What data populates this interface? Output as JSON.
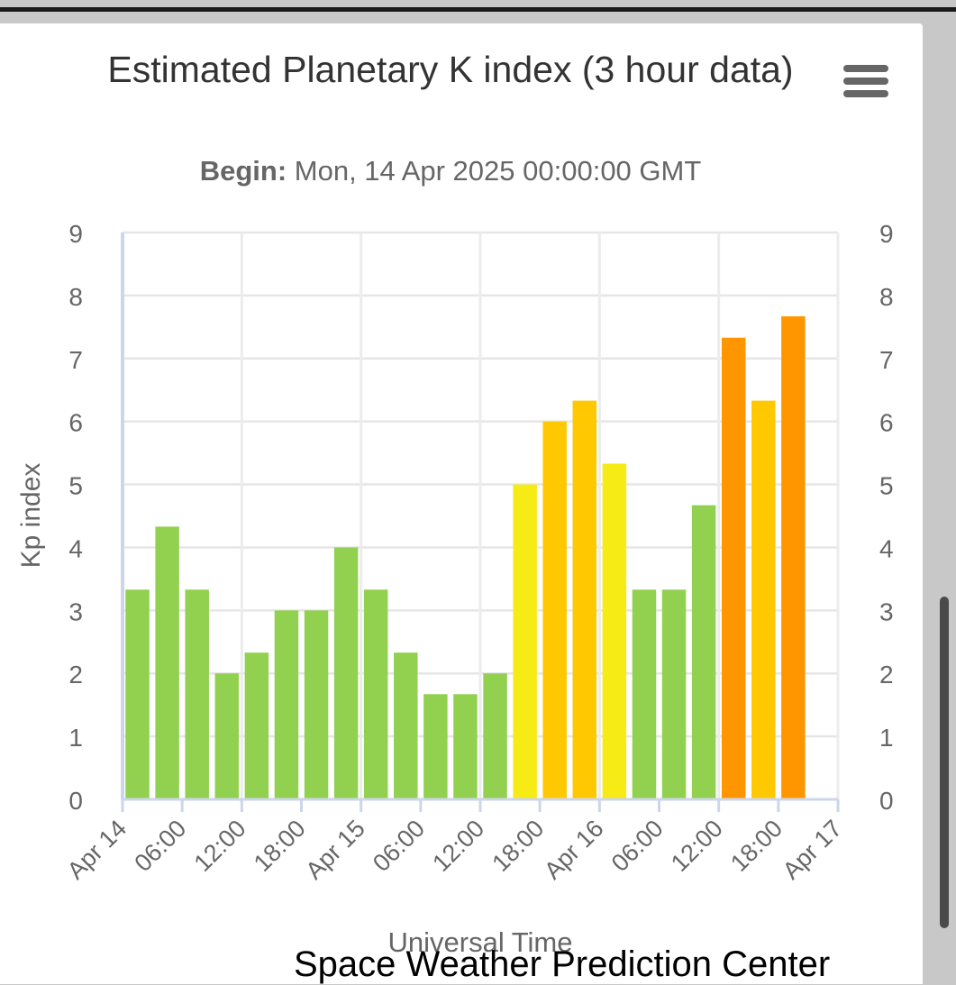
{
  "chart": {
    "title": "Estimated Planetary K index (3 hour data)",
    "subtitle_label": "Begin:",
    "subtitle_value": "Mon, 14 Apr 2025 00:00:00 GMT",
    "credit": "Space Weather Prediction Center",
    "menu_icon": "hamburger-menu-icon"
  },
  "chart_data": {
    "type": "bar",
    "title": "Estimated Planetary K index (3 hour data)",
    "subtitle": "Begin: Mon, 14 Apr 2025 00:00:00 GMT",
    "xlabel": "Universal Time",
    "ylabel": "Kp index",
    "ylim": [
      0,
      9
    ],
    "yticks": [
      "0",
      "1",
      "2",
      "3",
      "4",
      "5",
      "6",
      "7",
      "8",
      "9"
    ],
    "xlim": [
      "2025-04-14T00:00",
      "2025-04-17T00:00"
    ],
    "xticks": [
      "Apr 14",
      "06:00",
      "12:00",
      "18:00",
      "Apr 15",
      "06:00",
      "12:00",
      "18:00",
      "Apr 16",
      "06:00",
      "12:00",
      "18:00",
      "Apr 17"
    ],
    "grid": true,
    "legend": "none",
    "bar_interval_hours": 3,
    "series": [
      {
        "x": [
          "2025-04-14T00:00",
          "2025-04-14T03:00",
          "2025-04-14T06:00",
          "2025-04-14T09:00",
          "2025-04-14T12:00",
          "2025-04-14T15:00",
          "2025-04-14T18:00",
          "2025-04-14T21:00",
          "2025-04-15T00:00",
          "2025-04-15T03:00",
          "2025-04-15T06:00",
          "2025-04-15T09:00",
          "2025-04-15T12:00",
          "2025-04-15T15:00",
          "2025-04-15T18:00",
          "2025-04-15T21:00",
          "2025-04-16T00:00",
          "2025-04-16T03:00",
          "2025-04-16T06:00",
          "2025-04-16T09:00",
          "2025-04-16T12:00",
          "2025-04-16T15:00",
          "2025-04-16T18:00",
          "2025-04-16T21:00"
        ],
        "values": [
          3.33,
          4.33,
          3.33,
          2.0,
          2.33,
          3.0,
          3.0,
          4.0,
          3.33,
          2.33,
          1.67,
          1.67,
          2.0,
          5.0,
          6.0,
          6.33,
          5.33,
          3.33,
          3.33,
          4.67,
          7.33,
          6.33,
          7.67,
          null
        ]
      }
    ],
    "colors": {
      "below_5": "#92d050",
      "5": "#f6eb14",
      "6": "#ffc800",
      "7": "#ff9600",
      "8_plus": "#ff0000"
    }
  }
}
